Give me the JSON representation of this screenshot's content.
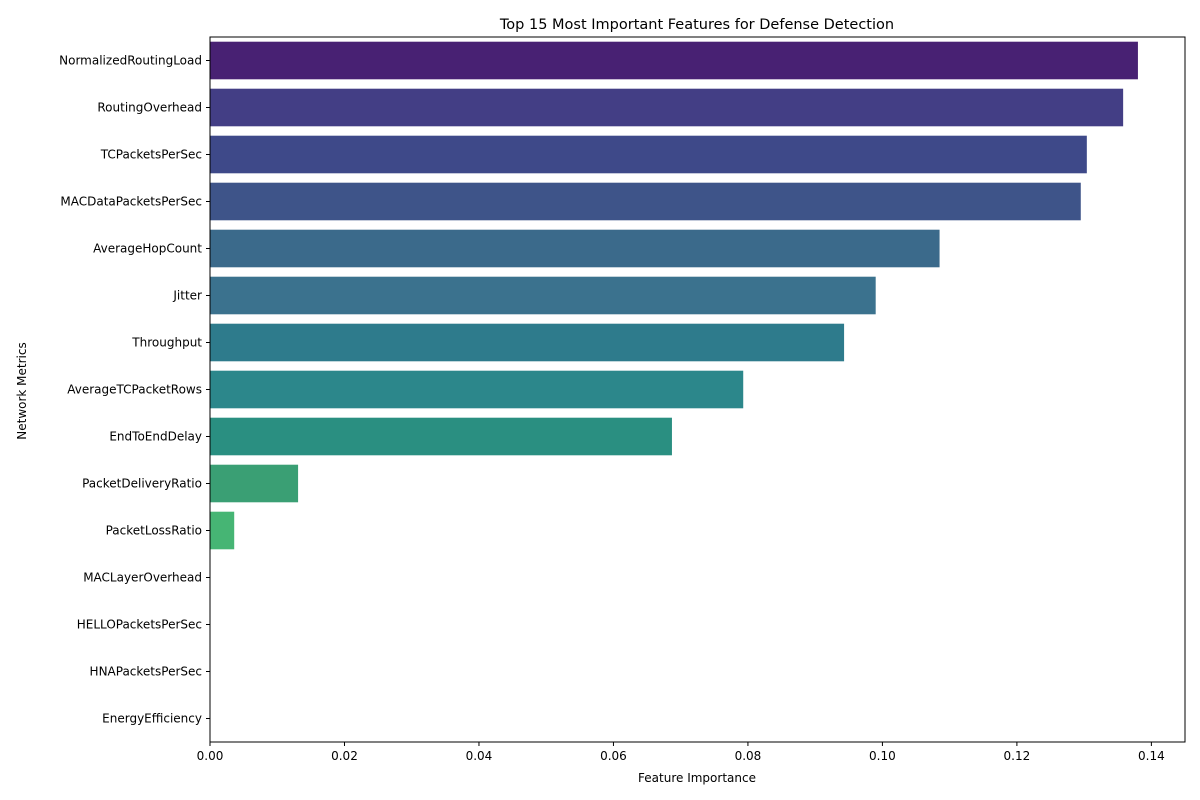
{
  "chart_data": {
    "type": "bar",
    "orientation": "horizontal",
    "title": "Top 15 Most Important Features for Defense Detection",
    "xlabel": "Feature Importance",
    "ylabel": "Network Metrics",
    "xlim": [
      0,
      0.145
    ],
    "xticks": [
      0.0,
      0.02,
      0.04,
      0.06,
      0.08,
      0.1,
      0.12,
      0.14
    ],
    "xtick_labels": [
      "0.00",
      "0.02",
      "0.04",
      "0.06",
      "0.08",
      "0.10",
      "0.12",
      "0.14"
    ],
    "grid": false,
    "categories": [
      "NormalizedRoutingLoad",
      "RoutingOverhead",
      "TCPacketsPerSec",
      "MACDataPacketsPerSec",
      "AverageHopCount",
      "Jitter",
      "Throughput",
      "AverageTCPacketRows",
      "EndToEndDelay",
      "PacketDeliveryRatio",
      "PacketLossRatio",
      "MACLayerOverhead",
      "HELLOPacketsPerSec",
      "HNAPacketsPerSec",
      "EnergyEfficiency"
    ],
    "values": [
      0.138,
      0.1358,
      0.1304,
      0.1295,
      0.1085,
      0.099,
      0.0943,
      0.0793,
      0.0687,
      0.0131,
      0.0036,
      0.0,
      0.0,
      0.0,
      0.0
    ],
    "colors": [
      "#482173",
      "#433e85",
      "#3e4989",
      "#3e5489",
      "#3b6a8b",
      "#3b728e",
      "#2e7b8c",
      "#2c878b",
      "#2a8f81",
      "#3a9f74",
      "#46b574",
      "#5ec962",
      "#7ad151",
      "#9bd93c",
      "#bddf26"
    ]
  }
}
